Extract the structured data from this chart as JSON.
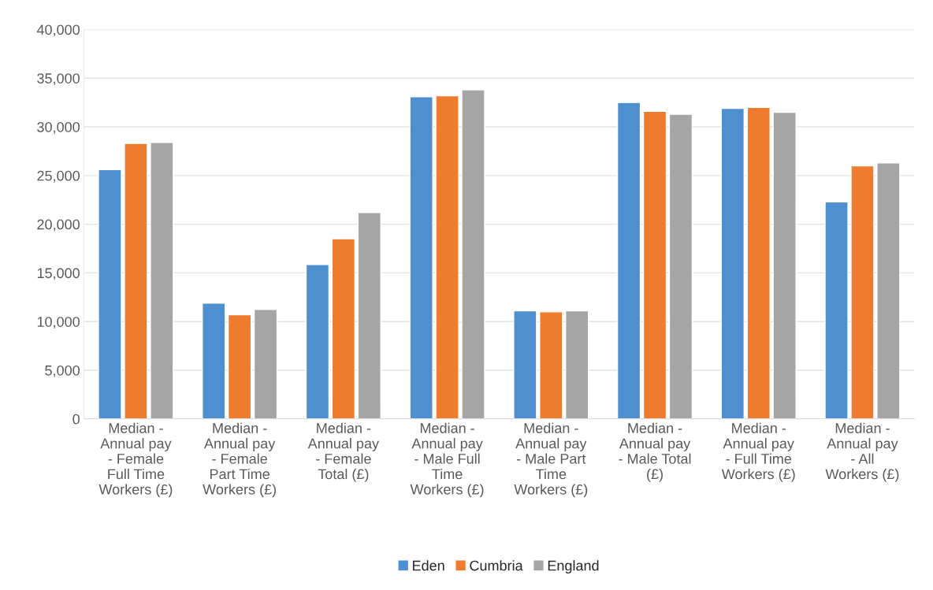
{
  "chart_data": {
    "type": "bar",
    "categories": [
      "Median -\nAnnual pay\n- Female\nFull Time\nWorkers (£)",
      "Median -\nAnnual pay\n- Female\nPart Time\nWorkers (£)",
      "Median -\nAnnual pay\n- Female\nTotal (£)",
      "Median -\nAnnual pay\n- Male Full\nTime\nWorkers (£)",
      "Median -\nAnnual pay\n- Male Part\nTime\nWorkers (£)",
      "Median -\nAnnual pay\n- Male Total\n(£)",
      "Median -\nAnnual pay\n- Full Time\nWorkers (£)",
      "Median -\nAnnual pay\n- All\nWorkers (£)"
    ],
    "series": [
      {
        "name": "Eden",
        "color": "#4e8fd0",
        "values": [
          25600,
          11900,
          15850,
          33100,
          11100,
          32500,
          31900,
          22300
        ]
      },
      {
        "name": "Cumbria",
        "color": "#ef7b2e",
        "values": [
          28300,
          10700,
          18500,
          33200,
          11000,
          31600,
          32000,
          26000
        ]
      },
      {
        "name": "England",
        "color": "#a5a5a5",
        "values": [
          28400,
          11250,
          21200,
          33800,
          11100,
          31300,
          31500,
          26300
        ]
      }
    ],
    "ylim": [
      0,
      40000
    ],
    "yticks": [
      {
        "value": 0,
        "label": "0"
      },
      {
        "value": 5000,
        "label": "5,000"
      },
      {
        "value": 10000,
        "label": "10,000"
      },
      {
        "value": 15000,
        "label": "15,000"
      },
      {
        "value": 20000,
        "label": "20,000"
      },
      {
        "value": 25000,
        "label": "25,000"
      },
      {
        "value": 30000,
        "label": "30,000"
      },
      {
        "value": 35000,
        "label": "35,000"
      },
      {
        "value": 40000,
        "label": "40,000"
      }
    ],
    "grid": "y",
    "legend": "bottom"
  }
}
